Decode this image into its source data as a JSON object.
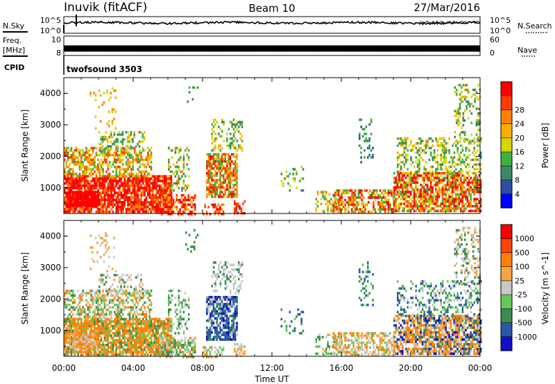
{
  "header": {
    "station": "Inuvik (fitACF)",
    "beam": "Beam 10",
    "date": "27/Mar/2016"
  },
  "strips": {
    "nsky_label": "N.Sky",
    "nsky_ticks": [
      "10^5",
      "10^0"
    ],
    "nsearch_label": "N.Search",
    "nsearch_ticks": [
      "10^5",
      "10^0"
    ],
    "freq_label_1": "Freq.",
    "freq_label_2": "[MHz]",
    "freq_ticks": [
      "10",
      "8"
    ],
    "nave_label": "Nave",
    "nave_ticks": [
      "60",
      "0"
    ],
    "cpid_label": "CPID",
    "cpid_value": "twofsound 3503"
  },
  "colors": {
    "power_scale": [
      "#0000ff",
      "#2e4fa0",
      "#3c8a64",
      "#3fb13f",
      "#d6d600",
      "#f7b000",
      "#ff7f00",
      "#ff3b00",
      "#ff0000"
    ],
    "velocity_scale": [
      "#ff0000",
      "#ff4400",
      "#ff7f00",
      "#f3a640",
      "#c8c8c8",
      "#63c85a",
      "#3c8c50",
      "#2858a8",
      "#1010c8"
    ]
  },
  "chart_data": [
    {
      "type": "heatmap",
      "name": "power",
      "ylabel": "Slant Range [km]",
      "xlim": [
        "00:00",
        "00:00"
      ],
      "ylim": [
        180,
        4500
      ],
      "y_ticks": [
        "1000",
        "2000",
        "3000",
        "4000"
      ],
      "colorbar_label": "Power [dB]",
      "colorbar_ticks": [
        "4",
        "8",
        "12",
        "16",
        "20",
        "24",
        "28"
      ]
    },
    {
      "type": "heatmap",
      "name": "velocity",
      "ylabel": "Slant Range [km]",
      "xlabel": "Time UT",
      "x_ticks": [
        "00:00",
        "04:00",
        "08:00",
        "12:00",
        "16:00",
        "20:00",
        "00:00"
      ],
      "xlim": [
        "00:00",
        "00:00"
      ],
      "ylim": [
        180,
        4500
      ],
      "y_ticks": [
        "1000",
        "2000",
        "3000",
        "4000"
      ],
      "colorbar_label": "Velocity [m s^-1]",
      "colorbar_ticks": [
        "1000",
        "500",
        "100",
        "25",
        "-25",
        "-100",
        "-500",
        "-1000"
      ]
    }
  ]
}
